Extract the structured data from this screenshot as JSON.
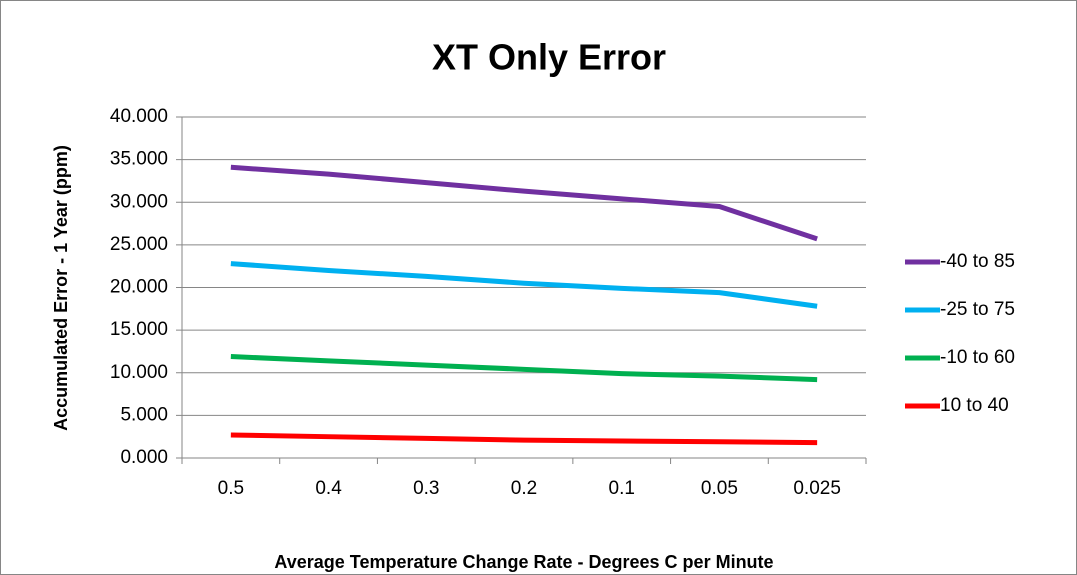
{
  "chart_data": {
    "type": "line",
    "title": "XT Only Error",
    "x_label": "Average Temperature Change Rate - Degrees C per Minute",
    "y_label": "Accumulated Error - 1 Year (ppm)",
    "categories": [
      "0.5",
      "0.4",
      "0.3",
      "0.2",
      "0.1",
      "0.05",
      "0.025"
    ],
    "series": [
      {
        "name": "-40 to 85",
        "color": "#7030a0",
        "values": [
          34.1,
          33.3,
          32.3,
          31.3,
          30.4,
          29.5,
          25.7
        ]
      },
      {
        "name": "-25 to 75",
        "color": "#00b0f0",
        "values": [
          22.8,
          22.0,
          21.3,
          20.5,
          19.9,
          19.4,
          17.8
        ]
      },
      {
        "name": "-10 to 60",
        "color": "#00b050",
        "values": [
          11.9,
          11.4,
          10.9,
          10.4,
          9.9,
          9.6,
          9.2
        ]
      },
      {
        "name": "10 to 40",
        "color": "#ff0000",
        "values": [
          2.7,
          2.5,
          2.3,
          2.1,
          2.0,
          1.9,
          1.8
        ]
      }
    ],
    "ylim": [
      0,
      40
    ],
    "yticks": [
      {
        "value": 0,
        "label": "0.000"
      },
      {
        "value": 5,
        "label": "5.000"
      },
      {
        "value": 10,
        "label": "10.000"
      },
      {
        "value": 15,
        "label": "15.000"
      },
      {
        "value": 20,
        "label": "20.000"
      },
      {
        "value": 25,
        "label": "25.000"
      },
      {
        "value": 30,
        "label": "30.000"
      },
      {
        "value": 35,
        "label": "35.000"
      },
      {
        "value": 40,
        "label": "40.000"
      }
    ],
    "grid": true,
    "legend": "right"
  }
}
